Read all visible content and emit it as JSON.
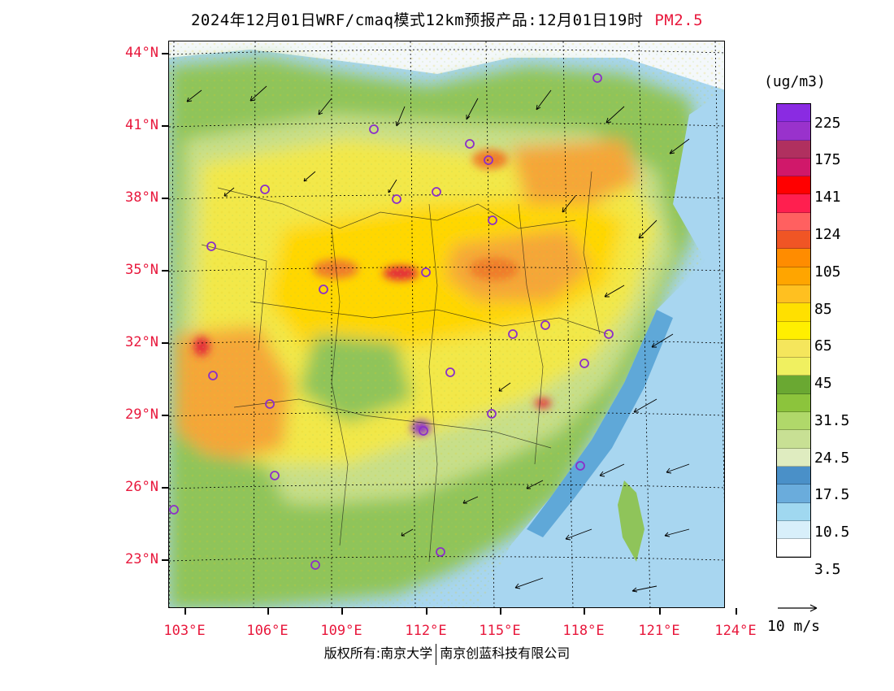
{
  "title": {
    "text": "2024年12月01日WRF/cmaq模式12km预报产品:12月01日19时",
    "variable": "PM2.5"
  },
  "map": {
    "lat_labels": [
      "44°N",
      "41°N",
      "38°N",
      "35°N",
      "32°N",
      "29°N",
      "26°N",
      "23°N"
    ],
    "lon_labels": [
      "103°E",
      "106°E",
      "109°E",
      "112°E",
      "115°E",
      "118°E",
      "121°E",
      "124°E"
    ],
    "colors": {
      "sea_light": "#a8d6f0",
      "sea_mid": "#5fa8d8",
      "clean_white": "#f4f8fb",
      "low_green": "#8fc45a",
      "mid_green": "#c7df8a",
      "yellow": "#f2e84a",
      "bright_yellow": "#ffd700",
      "orange": "#f5a638",
      "deep_orange": "#ef7d2a",
      "red": "#e32a3a",
      "purple": "#8b2fc9"
    }
  },
  "colorbar": {
    "unit": "(ug/m3)",
    "colors": [
      "#8a2be2",
      "#9932cc",
      "#b0305f",
      "#d0186a",
      "#ff0000",
      "#ff1f4f",
      "#ff6060",
      "#f05525",
      "#ff8c00",
      "#ffa500",
      "#ffc020",
      "#ffe000",
      "#ffef00",
      "#f5e65c",
      "#f0f060",
      "#6aa832",
      "#8cc43c",
      "#b0d86a",
      "#c8e094",
      "#dfecc0",
      "#4a90c8",
      "#6aacdc",
      "#a0d8f0",
      "#d8effa",
      "#ffffff"
    ],
    "labels": [
      "225",
      "175",
      "141",
      "124",
      "105",
      "85",
      "65",
      "45",
      "31.5",
      "24.5",
      "17.5",
      "10.5",
      "3.5"
    ]
  },
  "wind_reference": {
    "label": "10 m/s"
  },
  "credit": {
    "left": "版权所有:南京大学",
    "right": "南京创蓝科技有限公司"
  }
}
